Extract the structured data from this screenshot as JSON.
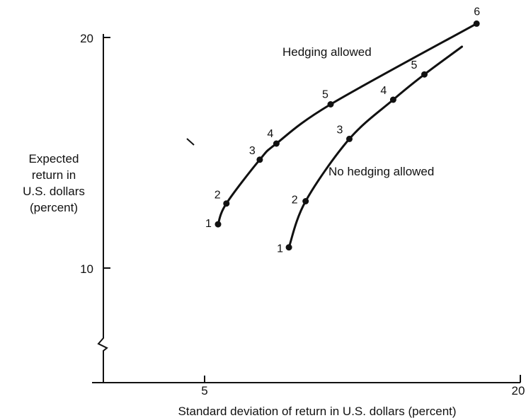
{
  "chart_data": {
    "type": "line",
    "title": "",
    "xlabel": "Standard deviation of return in U.S. dollars (percent)",
    "ylabel_lines": [
      "Expected",
      "return in",
      "U.S. dollars",
      "(percent)"
    ],
    "xlim": [
      0,
      20
    ],
    "ylim": [
      5,
      20
    ],
    "x_ticks": [
      5,
      20
    ],
    "y_ticks": [
      10,
      20
    ],
    "grid": false,
    "legend": "inline labels",
    "series": [
      {
        "name": "Hedging allowed",
        "color": "#111111",
        "points": [
          {
            "label": "1",
            "x": 5.5,
            "y": 11.9
          },
          {
            "label": "2",
            "x": 5.9,
            "y": 12.8
          },
          {
            "label": "3",
            "x": 7.5,
            "y": 14.7
          },
          {
            "label": "4",
            "x": 8.3,
            "y": 15.4
          },
          {
            "label": "5",
            "x": 10.9,
            "y": 17.1
          },
          {
            "label": "6",
            "x": 17.9,
            "y": 20.6
          }
        ],
        "line_end": {
          "x": 17.9,
          "y": 20.6
        }
      },
      {
        "name": "No hedging allowed",
        "color": "#111111",
        "points": [
          {
            "label": "1",
            "x": 8.9,
            "y": 10.9
          },
          {
            "label": "2",
            "x": 9.7,
            "y": 12.9
          },
          {
            "label": "3",
            "x": 11.8,
            "y": 15.6
          },
          {
            "label": "4",
            "x": 13.9,
            "y": 17.3
          },
          {
            "label": "5",
            "x": 15.4,
            "y": 18.4
          }
        ],
        "line_end": {
          "x": 17.2,
          "y": 19.6
        }
      }
    ]
  }
}
